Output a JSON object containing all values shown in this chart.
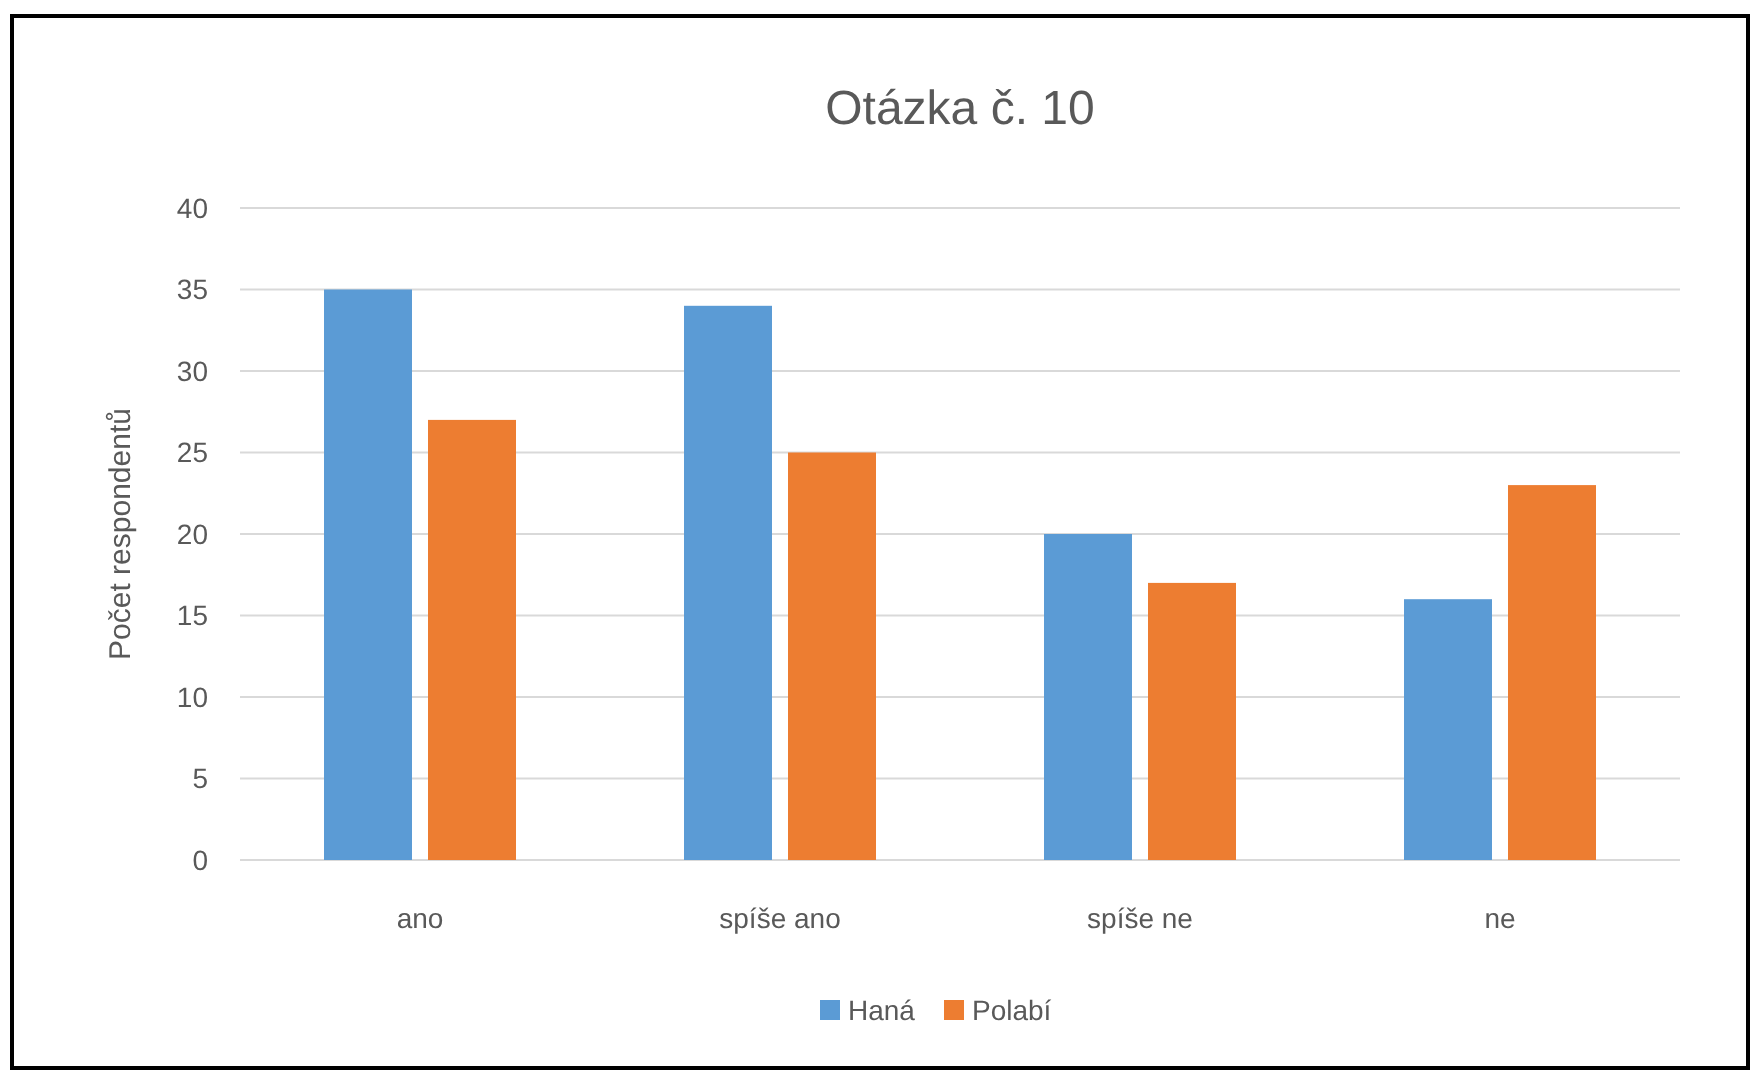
{
  "chart_data": {
    "type": "bar",
    "title": "Otázka č. 10",
    "ylabel": "Počet respondentů",
    "categories": [
      "ano",
      "spíše ano",
      "spíše ne",
      "ne"
    ],
    "series": [
      {
        "name": "Haná",
        "color": "#5b9bd5",
        "values": [
          35,
          34,
          20,
          16
        ]
      },
      {
        "name": "Polabí",
        "color": "#ed7d31",
        "values": [
          27,
          25,
          17,
          23
        ]
      }
    ],
    "ylim": [
      0,
      40
    ],
    "yticks": [
      0,
      5,
      10,
      15,
      20,
      25,
      30,
      35,
      40
    ],
    "grid": "y",
    "legend": "bottom"
  }
}
